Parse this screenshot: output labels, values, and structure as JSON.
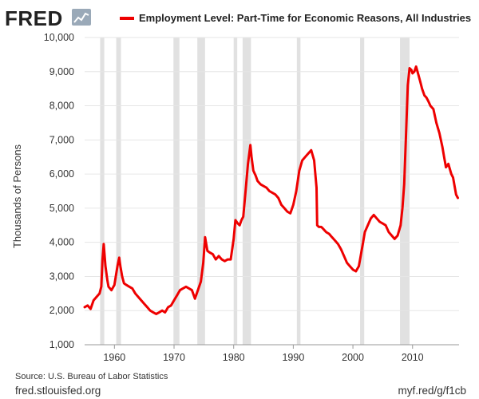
{
  "header": {
    "brand": "FRED",
    "brand_icon": "line-graph-icon"
  },
  "footer": {
    "source": "Source: U.S. Bureau of Labor Statistics",
    "site": "fred.stlouisfed.org",
    "shortlink": "myf.red/g/f1cb"
  },
  "colors": {
    "series": "#ee0000",
    "recession": "#e1e1e1",
    "grid": "#e6e6e6",
    "brand_icon_bg": "#9aa9b8"
  },
  "chart_data": {
    "type": "line",
    "title": "",
    "xlabel": "",
    "ylabel": "Thousands of Persons",
    "ylim": [
      1000,
      10000
    ],
    "xlim": [
      1955,
      2017.8
    ],
    "yticks": [
      1000,
      2000,
      3000,
      4000,
      5000,
      6000,
      7000,
      8000,
      9000,
      10000
    ],
    "ytick_labels": [
      "1,000",
      "2,000",
      "3,000",
      "4,000",
      "5,000",
      "6,000",
      "7,000",
      "8,000",
      "9,000",
      "10,000"
    ],
    "xticks": [
      1960,
      1970,
      1980,
      1990,
      2000,
      2010
    ],
    "xtick_labels": [
      "1960",
      "1970",
      "1980",
      "1990",
      "2000",
      "2010"
    ],
    "grid": "horizontal",
    "legend_position": "top",
    "recessions": [
      [
        1957.6,
        1958.3
      ],
      [
        1960.3,
        1961.1
      ],
      [
        1969.9,
        1970.9
      ],
      [
        1973.9,
        1975.2
      ],
      [
        1980.0,
        1980.6
      ],
      [
        1981.5,
        1982.9
      ],
      [
        1990.6,
        1991.2
      ],
      [
        2001.2,
        2001.9
      ],
      [
        2007.9,
        2009.5
      ]
    ],
    "series": [
      {
        "name": "Employment Level: Part-Time for Economic Reasons, All Industries",
        "x": [
          1955.0,
          1955.5,
          1956.0,
          1956.5,
          1957.0,
          1957.5,
          1957.8,
          1958.0,
          1958.2,
          1958.5,
          1958.8,
          1959.0,
          1959.5,
          1960.0,
          1960.5,
          1960.8,
          1961.0,
          1961.3,
          1961.6,
          1962.0,
          1962.5,
          1963.0,
          1963.5,
          1964.0,
          1964.5,
          1965.0,
          1965.5,
          1966.0,
          1966.5,
          1967.0,
          1967.5,
          1968.0,
          1968.5,
          1969.0,
          1969.5,
          1970.0,
          1970.5,
          1971.0,
          1971.5,
          1972.0,
          1972.5,
          1973.0,
          1973.5,
          1974.0,
          1974.5,
          1974.9,
          1975.2,
          1975.6,
          1976.0,
          1976.5,
          1977.0,
          1977.5,
          1978.0,
          1978.5,
          1979.0,
          1979.5,
          1980.0,
          1980.3,
          1980.7,
          1981.0,
          1981.3,
          1981.6,
          1982.0,
          1982.4,
          1982.8,
          1983.0,
          1983.3,
          1983.7,
          1984.0,
          1984.5,
          1985.0,
          1985.5,
          1986.0,
          1986.5,
          1987.0,
          1987.5,
          1988.0,
          1988.5,
          1989.0,
          1989.5,
          1990.0,
          1990.5,
          1991.0,
          1991.5,
          1992.0,
          1992.5,
          1993.0,
          1993.5,
          1993.9,
          1994.0,
          1994.3,
          1994.7,
          1995.0,
          1995.5,
          1996.0,
          1996.5,
          1997.0,
          1997.5,
          1998.0,
          1998.5,
          1999.0,
          1999.5,
          2000.0,
          2000.5,
          2001.0,
          2001.3,
          2001.7,
          2002.0,
          2002.5,
          2003.0,
          2003.5,
          2004.0,
          2004.5,
          2005.0,
          2005.5,
          2006.0,
          2006.5,
          2007.0,
          2007.5,
          2008.0,
          2008.3,
          2008.6,
          2008.9,
          2009.2,
          2009.5,
          2009.8,
          2010.0,
          2010.3,
          2010.6,
          2011.0,
          2011.3,
          2011.6,
          2012.0,
          2012.3,
          2012.6,
          2013.0,
          2013.5,
          2014.0,
          2014.5,
          2015.0,
          2015.3,
          2015.6,
          2016.0,
          2016.5,
          2016.8,
          2017.0,
          2017.3,
          2017.6
        ],
        "values": [
          2100,
          2150,
          2050,
          2300,
          2400,
          2500,
          2700,
          3500,
          3950,
          3300,
          2900,
          2700,
          2600,
          2750,
          3300,
          3550,
          3300,
          3000,
          2800,
          2750,
          2700,
          2650,
          2500,
          2400,
          2300,
          2200,
          2100,
          2000,
          1950,
          1900,
          1950,
          2000,
          1950,
          2100,
          2150,
          2300,
          2450,
          2600,
          2650,
          2700,
          2650,
          2600,
          2350,
          2600,
          2850,
          3400,
          4150,
          3750,
          3700,
          3650,
          3500,
          3600,
          3500,
          3450,
          3500,
          3500,
          4100,
          4650,
          4550,
          4500,
          4650,
          4750,
          5500,
          6300,
          6850,
          6500,
          6100,
          5950,
          5800,
          5700,
          5650,
          5600,
          5500,
          5450,
          5400,
          5300,
          5100,
          5000,
          4900,
          4850,
          5100,
          5500,
          6100,
          6400,
          6500,
          6600,
          6700,
          6400,
          5600,
          4500,
          4450,
          4450,
          4400,
          4300,
          4250,
          4150,
          4050,
          3950,
          3800,
          3600,
          3400,
          3300,
          3200,
          3150,
          3300,
          3600,
          4000,
          4300,
          4500,
          4700,
          4800,
          4700,
          4600,
          4550,
          4500,
          4300,
          4200,
          4100,
          4200,
          4500,
          5000,
          5700,
          7100,
          8600,
          9100,
          9050,
          8950,
          9000,
          9150,
          8900,
          8700,
          8500,
          8300,
          8250,
          8150,
          8000,
          7900,
          7500,
          7200,
          6800,
          6500,
          6200,
          6300,
          6000,
          5900,
          5700,
          5400,
          5300
        ]
      }
    ]
  }
}
